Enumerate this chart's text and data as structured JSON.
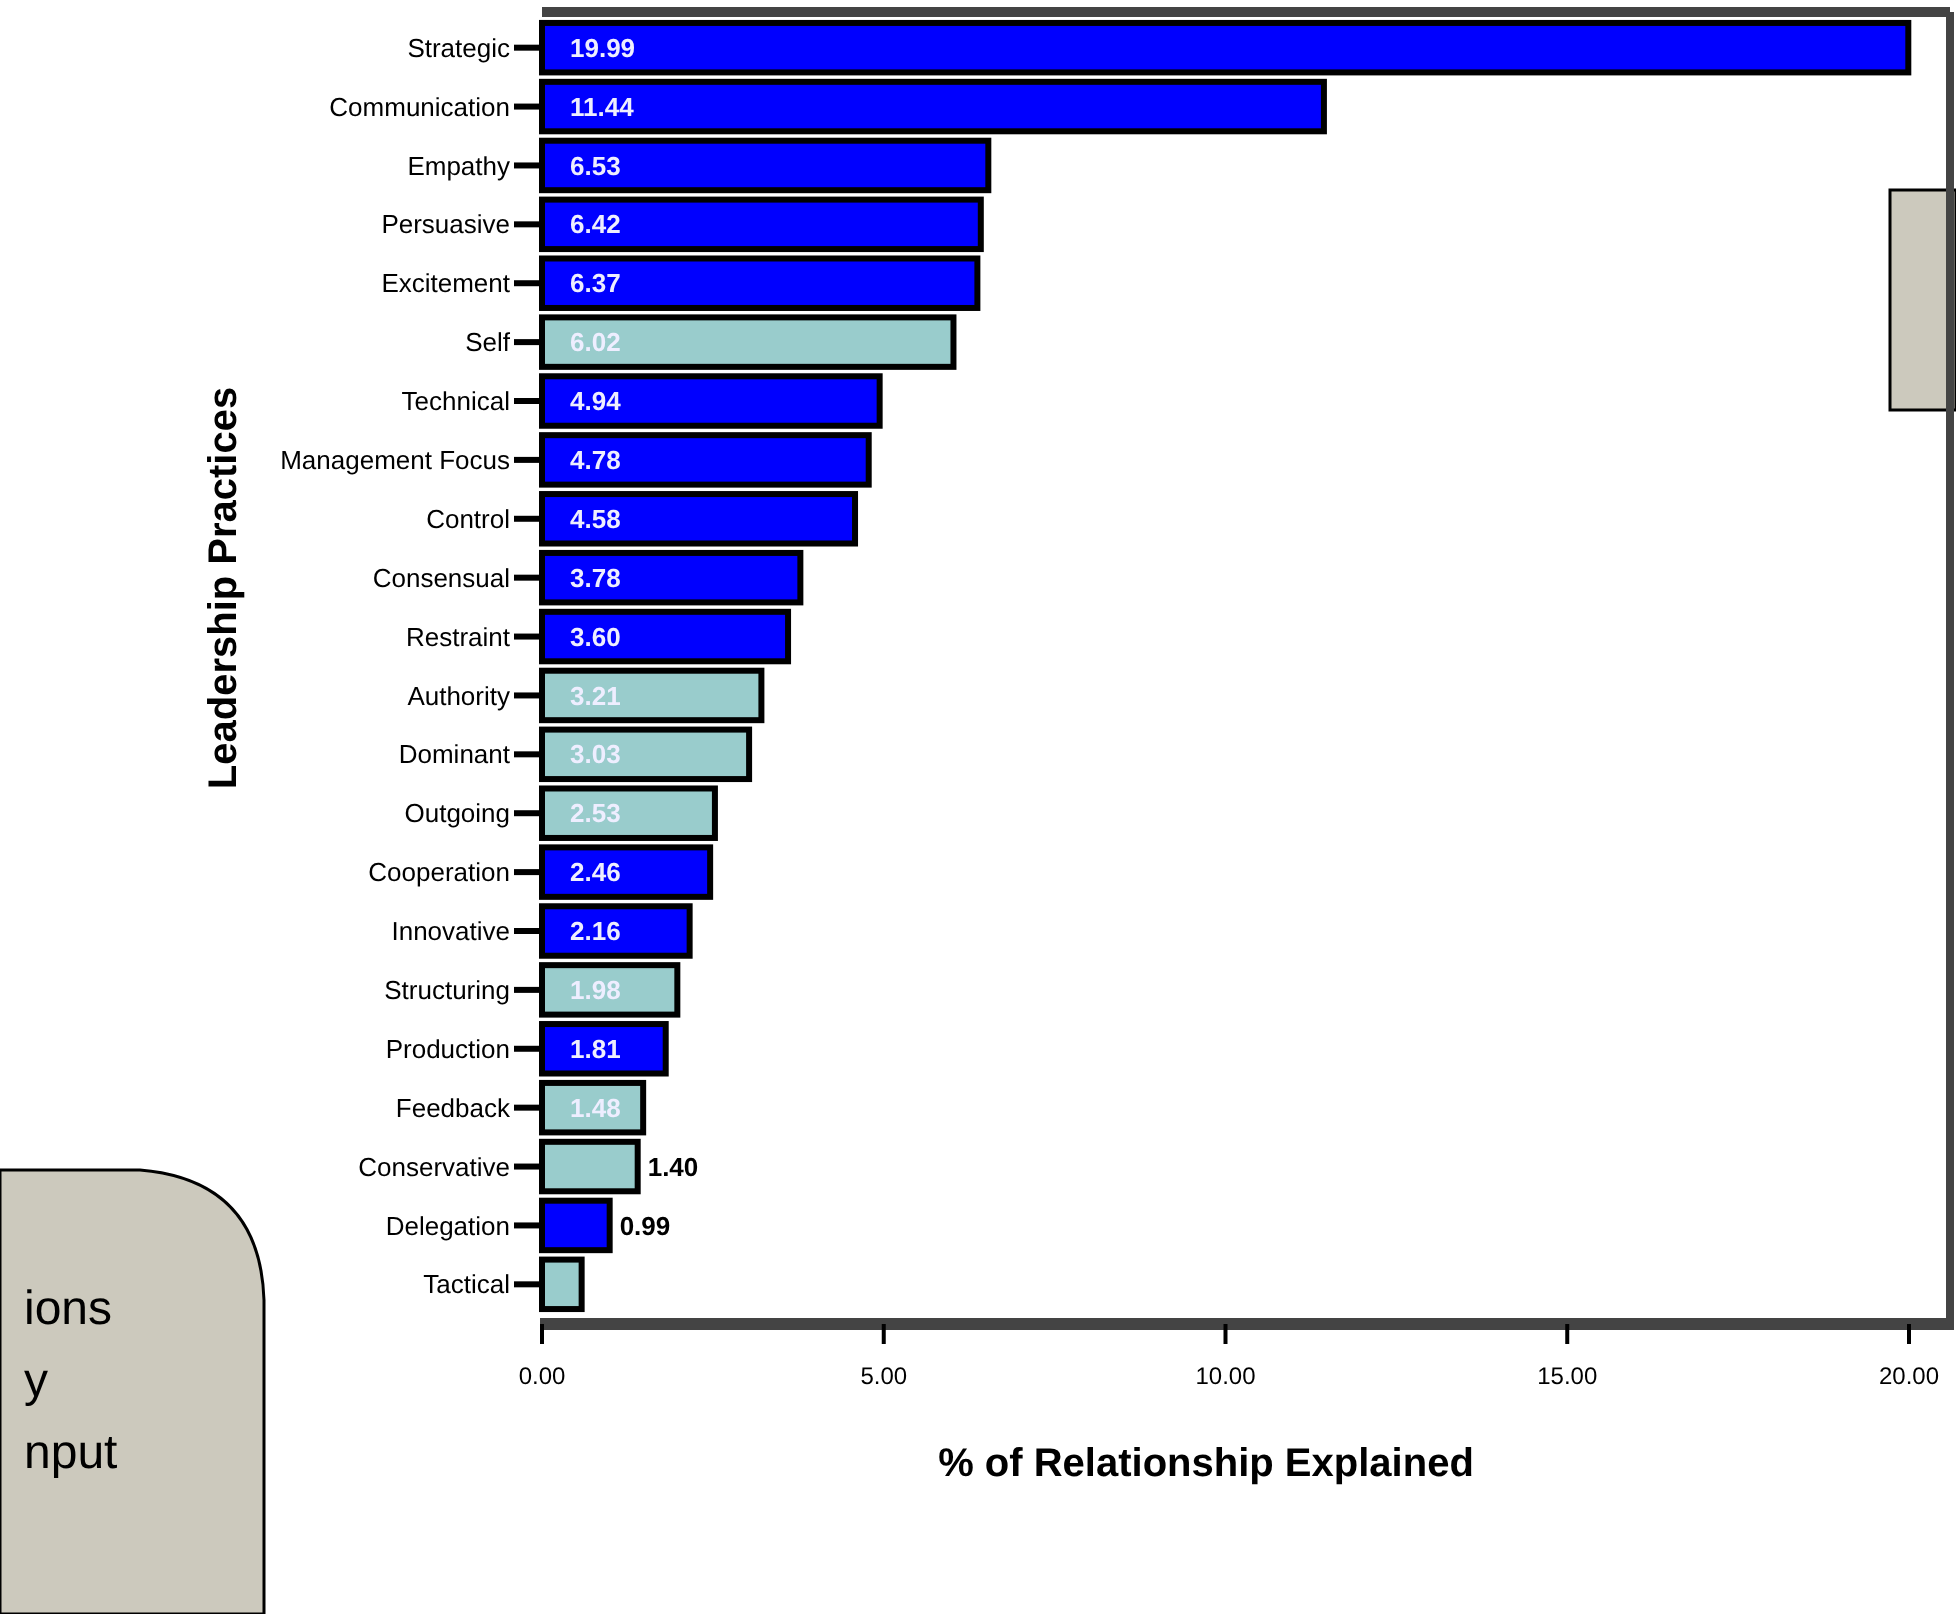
{
  "chart_data": {
    "type": "bar",
    "orientation": "horizontal",
    "ylabel": "Leadership Practices",
    "xlabel": "% of Relationship Explained",
    "categories": [
      "Strategic",
      "Communication",
      "Empathy",
      "Persuasive",
      "Excitement",
      "Self",
      "Technical",
      "Management Focus",
      "Control",
      "Consensual",
      "Restraint",
      "Authority",
      "Dominant",
      "Outgoing",
      "Cooperation",
      "Innovative",
      "Structuring",
      "Production",
      "Feedback",
      "Conservative",
      "Delegation",
      "Tactical"
    ],
    "values": [
      19.99,
      11.44,
      6.53,
      6.42,
      6.37,
      6.02,
      4.94,
      4.78,
      4.58,
      3.78,
      3.6,
      3.21,
      3.03,
      2.53,
      2.46,
      2.16,
      1.98,
      1.81,
      1.48,
      1.4,
      0.99,
      0.58
    ],
    "value_labels": [
      "19.99",
      "11.44",
      "6.53",
      "6.42",
      "6.37",
      "6.02",
      "4.94",
      "4.78",
      "4.58",
      "3.78",
      "3.60",
      "3.21",
      "3.03",
      "2.53",
      "2.46",
      "2.16",
      "1.98",
      "1.81",
      "1.48",
      "1.40",
      "0.99",
      null
    ],
    "colors": [
      "#0000ff",
      "#0000ff",
      "#0000ff",
      "#0000ff",
      "#0000ff",
      "#99cccc",
      "#0000ff",
      "#0000ff",
      "#0000ff",
      "#0000ff",
      "#0000ff",
      "#99cccc",
      "#99cccc",
      "#99cccc",
      "#0000ff",
      "#0000ff",
      "#99cccc",
      "#0000ff",
      "#99cccc",
      "#99cccc",
      "#0000ff",
      "#99cccc"
    ],
    "xlim": [
      0,
      20.6
    ],
    "xticks": [
      {
        "value": 0,
        "label": "0.00"
      },
      {
        "value": 5,
        "label": "5.00"
      },
      {
        "value": 10,
        "label": "10.00"
      },
      {
        "value": 15,
        "label": "15.00"
      },
      {
        "value": 20,
        "label": "20.00"
      }
    ],
    "grid": false,
    "annotations": [
      "ions",
      "y",
      "nput"
    ]
  }
}
